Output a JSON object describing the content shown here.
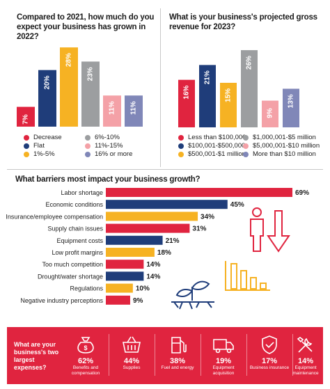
{
  "colors": {
    "red": "#e0243f",
    "navy": "#1f3d7a",
    "yellow": "#f6b223",
    "gray": "#9c9ea0",
    "pink": "#f4a1a7",
    "lavender": "#8087b8"
  },
  "chart1": {
    "title": "Compared to 2021, how much do you expect your business has grown in 2022?",
    "chart_data": {
      "type": "bar",
      "categories": [
        "Decrease",
        "Flat",
        "1%-5%",
        "6%-10%",
        "11%-15%",
        "16% or more"
      ],
      "values": [
        7,
        20,
        28,
        23,
        11,
        11
      ],
      "value_labels": [
        "7%",
        "20%",
        "28%",
        "23%",
        "11%",
        "11%"
      ],
      "colors": [
        "#e0243f",
        "#1f3d7a",
        "#f6b223",
        "#9c9ea0",
        "#f4a1a7",
        "#8087b8"
      ],
      "ylim": [
        0,
        30
      ]
    },
    "legend": [
      "Decrease",
      "Flat",
      "1%-5%",
      "6%-10%",
      "11%-15%",
      "16% or more"
    ]
  },
  "chart2": {
    "title": "What is your business's projected gross revenue for 2023?",
    "chart_data": {
      "type": "bar",
      "categories": [
        "Less than $100,000",
        "$100,001-$500,000",
        "$500,001-$1 million",
        "$1,000,001-$5 million",
        "$5,000,001-$10 million",
        "More than $10 million"
      ],
      "values": [
        16,
        21,
        15,
        26,
        9,
        13
      ],
      "value_labels": [
        "16%",
        "21%",
        "15%",
        "26%",
        "9%",
        "13%"
      ],
      "colors": [
        "#e0243f",
        "#1f3d7a",
        "#f6b223",
        "#9c9ea0",
        "#f4a1a7",
        "#8087b8"
      ],
      "ylim": [
        0,
        30
      ]
    },
    "legend": [
      "Less than $100,000",
      "$100,001-$500,000",
      "$500,001-$1 million",
      "$1,000,001-$5 million",
      "$5,000,001-$10 million",
      "More than $10 million"
    ]
  },
  "chart3": {
    "title": "What barriers most impact your business growth?",
    "chart_data": {
      "type": "bar",
      "orientation": "horizontal",
      "categories": [
        "Labor shortage",
        "Economic conditions",
        "Insurance/employee compensation",
        "Supply chain issues",
        "Equipment costs",
        "Low profit margins",
        "Too much competition",
        "Drought/water shortage",
        "Regulations",
        "Negative industry perceptions"
      ],
      "values": [
        69,
        45,
        34,
        31,
        21,
        18,
        14,
        14,
        10,
        9
      ],
      "value_labels": [
        "69%",
        "45%",
        "34%",
        "31%",
        "21%",
        "18%",
        "14%",
        "14%",
        "10%",
        "9%"
      ],
      "colors": [
        "#e0243f",
        "#1f3d7a",
        "#f6b223",
        "#e0243f",
        "#1f3d7a",
        "#f6b223",
        "#e0243f",
        "#1f3d7a",
        "#f6b223",
        "#e0243f"
      ],
      "xlim": [
        0,
        69
      ]
    }
  },
  "expenses": {
    "question": "What are your business's two largest expenses?",
    "items": [
      {
        "pct": "62%",
        "label": "Benefits and compensation",
        "icon": "money-bag-icon"
      },
      {
        "pct": "44%",
        "label": "Supplies",
        "icon": "shopping-basket-icon"
      },
      {
        "pct": "38%",
        "label": "Fuel and energy",
        "icon": "fuel-pump-icon"
      },
      {
        "pct": "19%",
        "label": "Equipment acquisition",
        "icon": "truck-icon"
      },
      {
        "pct": "17%",
        "label": "Business insurance",
        "icon": "shield-check-icon"
      },
      {
        "pct": "14%",
        "label": "Equipment maintenance",
        "icon": "wrench-screwdriver-icon"
      }
    ]
  }
}
